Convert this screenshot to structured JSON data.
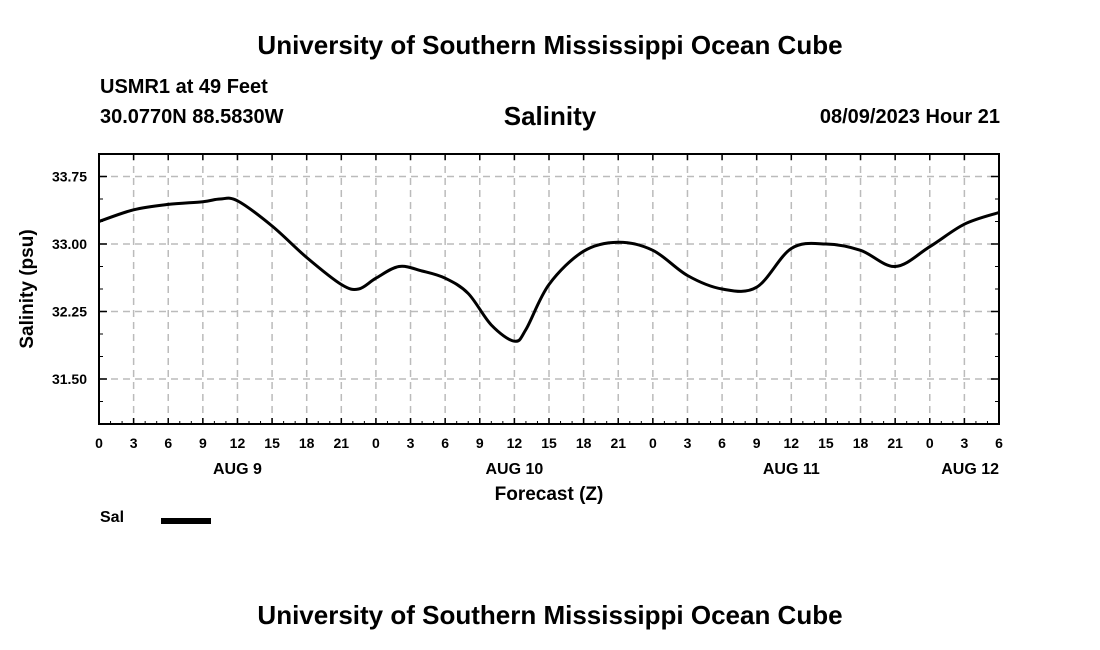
{
  "header": {
    "title": "University of Southern Mississippi Ocean Cube",
    "station": "USMR1 at 49 Feet",
    "coords": "30.0770N  88.5830W",
    "chart_title": "Salinity",
    "datetime": "08/09/2023 Hour 21"
  },
  "footer": {
    "title": "University of Southern Mississippi Ocean Cube"
  },
  "legend": {
    "label": "Sal"
  },
  "colors": {
    "line": "#000000",
    "grid": "#bbbbbb",
    "frame": "#000000"
  },
  "chart_data": {
    "type": "line",
    "title": "Salinity",
    "xlabel": "Forecast (Z)",
    "ylabel": "Salinity (psu)",
    "xlim": [
      0,
      78
    ],
    "ylim": [
      31.0,
      34.0
    ],
    "yticks": [
      31.5,
      32.25,
      33.0,
      33.75
    ],
    "ytick_labels": [
      "31.50",
      "32.25",
      "33.00",
      "33.75"
    ],
    "xticks": [
      0,
      3,
      6,
      9,
      12,
      15,
      18,
      21,
      24,
      27,
      30,
      33,
      36,
      39,
      42,
      45,
      48,
      51,
      54,
      57,
      60,
      63,
      66,
      69,
      72,
      75,
      78
    ],
    "xtick_labels": [
      "0",
      "3",
      "6",
      "9",
      "12",
      "15",
      "18",
      "21",
      "0",
      "3",
      "6",
      "9",
      "12",
      "15",
      "18",
      "21",
      "0",
      "3",
      "6",
      "9",
      "12",
      "15",
      "18",
      "21",
      "0",
      "3",
      "6"
    ],
    "day_labels": [
      {
        "hour": 12,
        "label": "AUG 9"
      },
      {
        "hour": 36,
        "label": "AUG 10"
      },
      {
        "hour": 60,
        "label": "AUG 11"
      },
      {
        "hour": 75.5,
        "label": "AUG 12"
      }
    ],
    "grid": true,
    "series": [
      {
        "name": "Sal",
        "x": [
          0,
          3,
          6,
          9,
          10.5,
          12,
          15,
          18,
          21,
          22.5,
          24,
          26,
          28,
          30,
          32,
          34,
          36,
          37,
          39,
          42,
          45,
          48,
          51,
          54,
          57,
          60,
          63,
          66,
          69,
          72,
          75,
          78
        ],
        "values": [
          33.25,
          33.38,
          33.44,
          33.47,
          33.5,
          33.48,
          33.2,
          32.85,
          32.55,
          32.5,
          32.62,
          32.75,
          32.7,
          32.62,
          32.45,
          32.1,
          31.92,
          32.05,
          32.55,
          32.92,
          33.02,
          32.93,
          32.65,
          32.5,
          32.52,
          32.95,
          33.0,
          32.93,
          32.75,
          32.97,
          33.22,
          33.35
        ]
      }
    ]
  }
}
